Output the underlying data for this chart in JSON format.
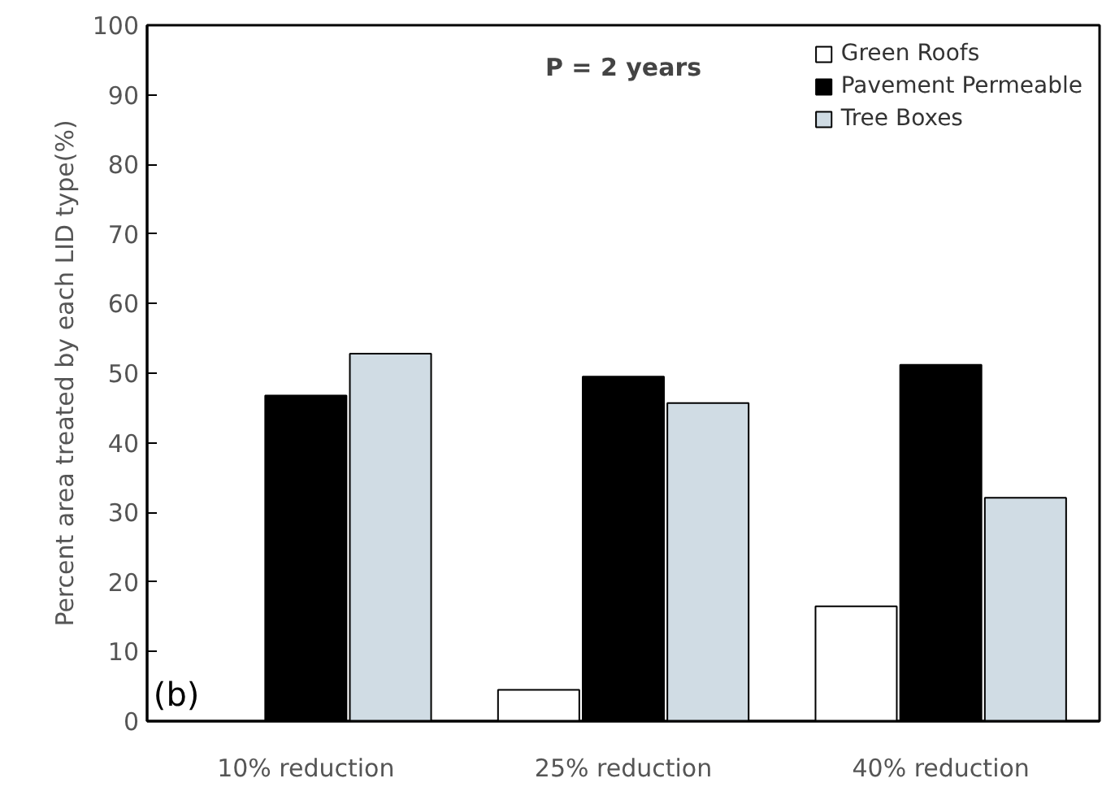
{
  "chart_data": {
    "type": "bar",
    "ylabel": "Percent area treated by each LID type(%)",
    "categories": [
      "10% reduction",
      "25% reduction",
      "40% reduction"
    ],
    "series": [
      {
        "name": "Green Roofs",
        "color": "#ffffff",
        "values": [
          0,
          4.5,
          16.5
        ]
      },
      {
        "name": "Pavement Permeable",
        "color": "#000000",
        "values": [
          46.8,
          49.5,
          51.2
        ]
      },
      {
        "name": "Tree Boxes",
        "color": "#d0dce4",
        "values": [
          52.8,
          45.7,
          32.1
        ]
      }
    ],
    "ylim": [
      0,
      100
    ],
    "yticks": [
      0,
      10,
      20,
      30,
      40,
      50,
      60,
      70,
      80,
      90,
      100
    ],
    "grid": false,
    "legend": "top right",
    "annotations": [
      "P = 2 years",
      "(b)"
    ]
  }
}
